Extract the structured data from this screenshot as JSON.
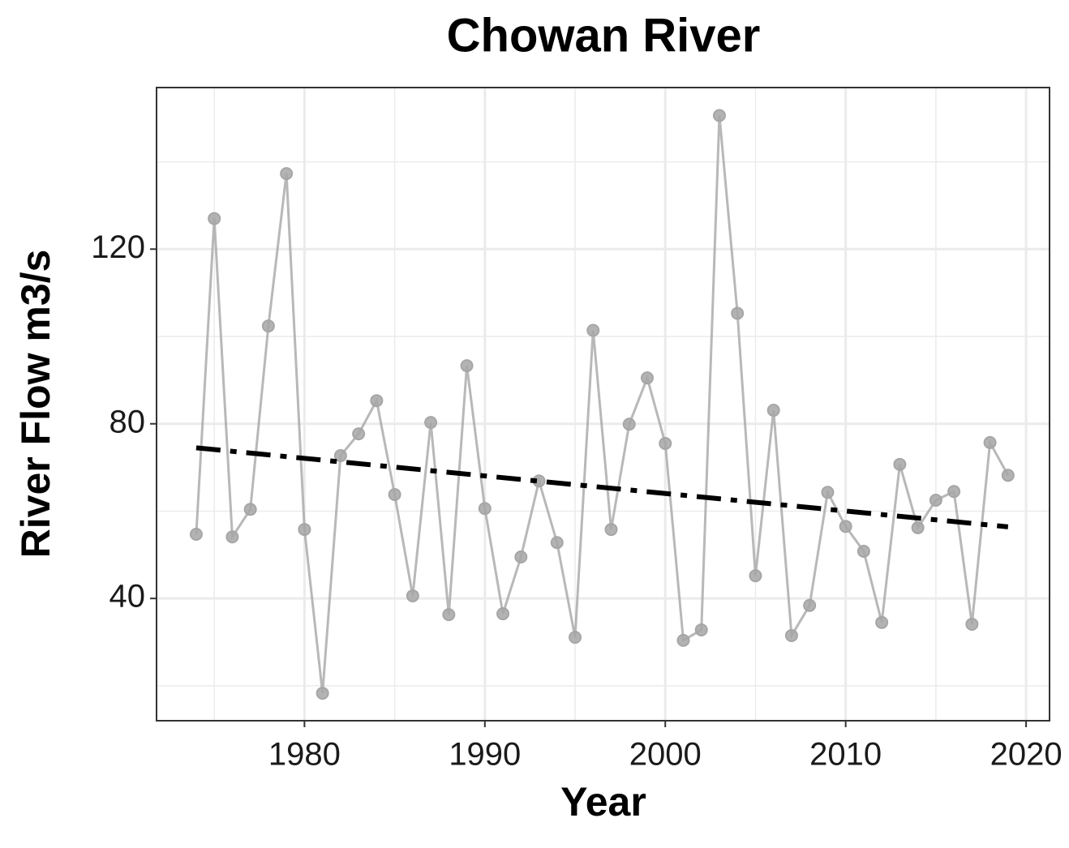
{
  "chart_data": {
    "type": "line",
    "title": "Chowan River",
    "x_label": "Year",
    "y_label": "River Flow m3/s",
    "x": [
      1974,
      1975,
      1976,
      1977,
      1978,
      1979,
      1980,
      1981,
      1982,
      1983,
      1984,
      1985,
      1986,
      1987,
      1988,
      1989,
      1990,
      1991,
      1992,
      1993,
      1994,
      1995,
      1996,
      1997,
      1998,
      1999,
      2000,
      2001,
      2002,
      2003,
      2004,
      2005,
      2006,
      2007,
      2008,
      2009,
      2010,
      2011,
      2012,
      2013,
      2014,
      2015,
      2016,
      2017,
      2018,
      2019
    ],
    "series": [
      {
        "color": "#a6a6a6",
        "values": [
          54.7,
          127.0,
          54.1,
          60.4,
          102.4,
          137.3,
          55.8,
          18.3,
          72.7,
          77.7,
          85.3,
          63.8,
          40.6,
          80.3,
          36.3,
          93.3,
          60.6,
          36.5,
          49.5,
          66.9,
          52.8,
          31.1,
          101.4,
          55.8,
          79.9,
          90.5,
          75.5,
          30.4,
          32.8,
          150.6,
          105.3,
          45.2,
          83.1,
          31.5,
          38.4,
          64.3,
          56.5,
          50.8,
          34.5,
          70.7,
          56.2,
          62.5,
          64.5,
          34.1,
          75.7,
          68.2
        ]
      }
    ],
    "trend": {
      "x": [
        1974,
        2019
      ],
      "values": [
        74.5,
        56.4
      ],
      "color": "#000000",
      "dashed": true
    },
    "xlim": [
      1971.8,
      2021.3
    ],
    "ylim": [
      12,
      157
    ],
    "xticks": [
      1980,
      1990,
      2000,
      2010,
      2020
    ],
    "yticks": [
      40,
      80,
      120
    ],
    "x_minor_grid": [
      1975,
      1985,
      1995,
      2005,
      2015
    ],
    "y_minor_grid": [
      20,
      60,
      100,
      140
    ],
    "grid": true
  }
}
